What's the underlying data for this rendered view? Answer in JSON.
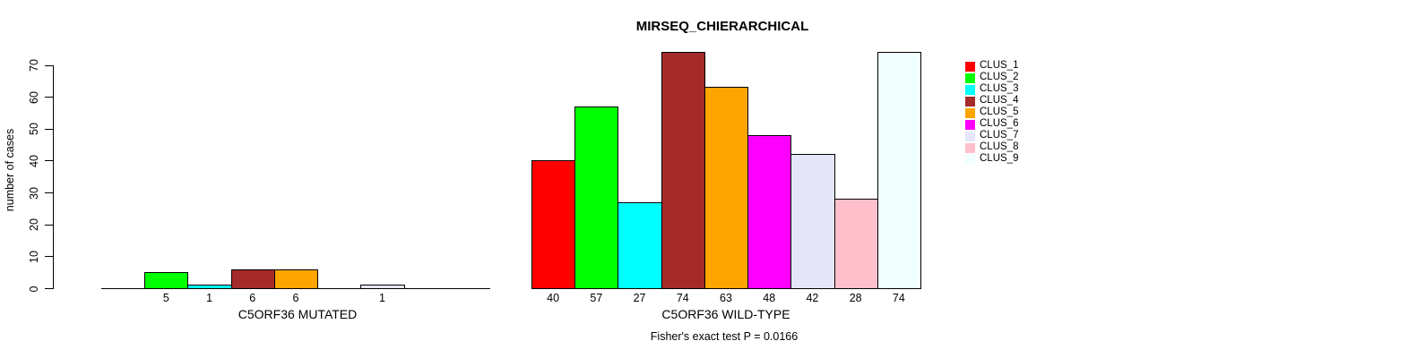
{
  "chart_data": {
    "type": "bar",
    "title": "MIRSEQ_CHIERARCHICAL",
    "ylabel": "number of cases",
    "ylim": [
      0,
      70
    ],
    "yticks": [
      0,
      10,
      20,
      30,
      40,
      50,
      60,
      70
    ],
    "grid": false,
    "legend_position": "right",
    "clusters": [
      {
        "label": "CLUS_1",
        "color": "#FF0000"
      },
      {
        "label": "CLUS_2",
        "color": "#00FF00"
      },
      {
        "label": "CLUS_3",
        "color": "#00FFFF"
      },
      {
        "label": "CLUS_4",
        "color": "#A52A2A"
      },
      {
        "label": "CLUS_5",
        "color": "#FFA500"
      },
      {
        "label": "CLUS_6",
        "color": "#FF00FF"
      },
      {
        "label": "CLUS_7",
        "color": "#E6E6FA"
      },
      {
        "label": "CLUS_8",
        "color": "#FFC0CB"
      },
      {
        "label": "CLUS_9",
        "color": "#F0FFFF"
      }
    ],
    "groups": [
      {
        "label": "C5ORF36 MUTATED",
        "values": [
          0,
          5,
          1,
          6,
          6,
          0,
          1,
          0,
          0
        ]
      },
      {
        "label": "C5ORF36 WILD-TYPE",
        "values": [
          40,
          57,
          27,
          74,
          63,
          48,
          42,
          28,
          74
        ]
      }
    ],
    "footnote": "Fisher's exact test P = 0.0166"
  }
}
